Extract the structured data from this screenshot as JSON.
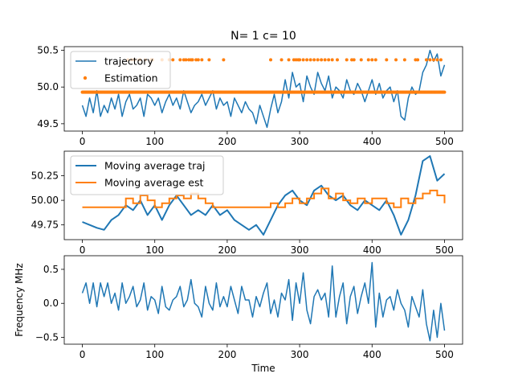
{
  "title": "N= 1 c= 10",
  "chart_data": [
    {
      "type": "line",
      "xlim": [
        -25,
        525
      ],
      "ylim": [
        49.4,
        50.55
      ],
      "xticks": [
        0,
        100,
        200,
        300,
        400,
        500
      ],
      "xtick_labels": [
        "0",
        "100",
        "200",
        "300",
        "400",
        "500"
      ],
      "yticks": [
        49.5,
        50.0,
        50.5
      ],
      "ytick_labels": [
        "49.5",
        "50.0",
        "50.5"
      ],
      "legend_location": "upper left",
      "series": [
        {
          "name": "trajectory",
          "style": "line",
          "color": "#1f77b4",
          "linewidth": 1.5,
          "x": [
            0,
            5,
            10,
            15,
            20,
            25,
            30,
            35,
            40,
            45,
            50,
            55,
            60,
            65,
            70,
            75,
            80,
            85,
            90,
            95,
            100,
            105,
            110,
            115,
            120,
            125,
            130,
            135,
            140,
            145,
            150,
            155,
            160,
            165,
            170,
            175,
            180,
            185,
            190,
            195,
            200,
            205,
            210,
            215,
            220,
            225,
            230,
            235,
            240,
            245,
            250,
            255,
            260,
            265,
            270,
            275,
            280,
            285,
            290,
            295,
            300,
            305,
            310,
            315,
            320,
            325,
            330,
            335,
            340,
            345,
            350,
            355,
            360,
            365,
            370,
            375,
            380,
            385,
            390,
            395,
            400,
            405,
            410,
            415,
            420,
            425,
            430,
            435,
            440,
            445,
            450,
            455,
            460,
            465,
            470,
            475,
            480,
            485,
            490,
            495,
            500
          ],
          "y": [
            49.75,
            49.6,
            49.85,
            49.65,
            49.95,
            49.6,
            49.75,
            49.65,
            49.85,
            49.7,
            49.9,
            49.6,
            49.8,
            49.9,
            49.7,
            49.75,
            49.85,
            49.6,
            49.9,
            49.85,
            49.75,
            49.85,
            49.65,
            49.8,
            49.9,
            49.75,
            49.85,
            49.7,
            49.95,
            49.8,
            49.65,
            49.75,
            49.8,
            49.9,
            49.75,
            49.85,
            49.95,
            49.7,
            49.85,
            49.75,
            49.8,
            49.6,
            49.85,
            49.75,
            49.65,
            49.8,
            49.7,
            49.65,
            49.5,
            49.75,
            49.6,
            49.45,
            49.7,
            49.9,
            49.65,
            49.8,
            50.1,
            49.85,
            50.2,
            50.0,
            50.05,
            49.8,
            50.15,
            50.0,
            49.9,
            50.2,
            50.05,
            49.95,
            50.15,
            49.85,
            50.0,
            49.95,
            49.85,
            50.1,
            49.95,
            49.9,
            50.05,
            49.95,
            49.8,
            49.95,
            50.1,
            49.9,
            50.05,
            49.85,
            49.95,
            50.0,
            49.8,
            49.95,
            49.6,
            49.55,
            49.85,
            50.0,
            49.9,
            49.95,
            50.2,
            50.3,
            50.5,
            50.35,
            50.45,
            50.15,
            50.3
          ]
        },
        {
          "name": "Estimation",
          "style": "markers",
          "color": "#ff7f0e",
          "baseline_value": 49.93,
          "baseline_x_range": [
            0,
            500
          ],
          "upper_value": 50.37,
          "upper_x": [
            63,
            68,
            72,
            78,
            80,
            87,
            95,
            97,
            110,
            120,
            125,
            135,
            140,
            143,
            147,
            150,
            152,
            157,
            160,
            165,
            175,
            195,
            260,
            275,
            285,
            292,
            295,
            298,
            300,
            305,
            310,
            315,
            320,
            325,
            330,
            335,
            340,
            345,
            352,
            365,
            372,
            375,
            385,
            395,
            400,
            405,
            420,
            433,
            445,
            460,
            463,
            475,
            480,
            485,
            490,
            495
          ]
        }
      ]
    },
    {
      "type": "line",
      "xlim": [
        -25,
        525
      ],
      "ylim": [
        49.6,
        50.5
      ],
      "xticks": [
        0,
        100,
        200,
        300,
        400,
        500
      ],
      "xtick_labels": [
        "0",
        "100",
        "200",
        "300",
        "400",
        "500"
      ],
      "yticks": [
        49.75,
        50.0,
        50.25
      ],
      "ytick_labels": [
        "49.75",
        "50.00",
        "50.25"
      ],
      "legend_location": "upper left",
      "series": [
        {
          "name": "Moving average traj",
          "style": "line",
          "color": "#1f77b4",
          "linewidth": 2,
          "x": [
            0,
            10,
            20,
            30,
            40,
            50,
            60,
            70,
            80,
            90,
            100,
            110,
            120,
            130,
            140,
            150,
            160,
            170,
            180,
            190,
            200,
            210,
            220,
            230,
            240,
            250,
            260,
            270,
            280,
            290,
            300,
            310,
            320,
            330,
            340,
            350,
            360,
            370,
            380,
            390,
            400,
            410,
            420,
            430,
            440,
            450,
            460,
            470,
            480,
            490,
            500
          ],
          "y": [
            49.78,
            49.75,
            49.72,
            49.7,
            49.8,
            49.85,
            49.95,
            49.9,
            50.0,
            49.85,
            49.95,
            49.8,
            49.95,
            50.05,
            49.95,
            49.85,
            49.9,
            49.85,
            49.95,
            49.85,
            49.9,
            49.8,
            49.75,
            49.7,
            49.75,
            49.65,
            49.8,
            49.95,
            50.05,
            50.1,
            50.0,
            49.95,
            50.1,
            50.15,
            50.05,
            50.0,
            50.05,
            49.95,
            49.9,
            50.0,
            49.95,
            49.9,
            50.0,
            49.85,
            49.65,
            49.8,
            50.05,
            50.4,
            50.45,
            50.2,
            50.27
          ]
        },
        {
          "name": "Moving average est",
          "style": "steps",
          "color": "#ff7f0e",
          "linewidth": 2,
          "x": [
            0,
            60,
            70,
            80,
            90,
            100,
            110,
            120,
            130,
            140,
            150,
            160,
            170,
            180,
            200,
            260,
            270,
            280,
            290,
            300,
            310,
            320,
            330,
            340,
            350,
            360,
            370,
            380,
            390,
            400,
            420,
            430,
            440,
            450,
            460,
            470,
            480,
            490,
            500
          ],
          "y": [
            49.93,
            50.02,
            49.97,
            50.05,
            50.0,
            49.93,
            49.97,
            50.02,
            50.05,
            50.02,
            50.07,
            50.02,
            49.97,
            49.93,
            49.93,
            49.97,
            49.93,
            49.97,
            50.02,
            49.97,
            50.02,
            50.07,
            50.12,
            50.02,
            50.07,
            50.0,
            49.97,
            50.02,
            49.97,
            50.02,
            49.97,
            49.93,
            50.02,
            49.97,
            50.02,
            50.07,
            50.1,
            50.05,
            49.97
          ]
        }
      ]
    },
    {
      "type": "line",
      "xlim": [
        -25,
        525
      ],
      "ylim": [
        -0.6,
        0.7
      ],
      "xticks": [
        0,
        100,
        200,
        300,
        400,
        500
      ],
      "xtick_labels": [
        "0",
        "100",
        "200",
        "300",
        "400",
        "500"
      ],
      "yticks": [
        -0.5,
        0.0,
        0.5
      ],
      "ytick_labels": [
        "−0.5",
        "0.0",
        "0.5"
      ],
      "xlabel": "Time",
      "ylabel": "Frequency MHz",
      "series": [
        {
          "style": "line",
          "color": "#1f77b4",
          "linewidth": 1.5,
          "x": [
            0,
            5,
            10,
            15,
            20,
            25,
            30,
            35,
            40,
            45,
            50,
            55,
            60,
            65,
            70,
            75,
            80,
            85,
            90,
            95,
            100,
            105,
            110,
            115,
            120,
            125,
            130,
            135,
            140,
            145,
            150,
            155,
            160,
            165,
            170,
            175,
            180,
            185,
            190,
            195,
            200,
            205,
            210,
            215,
            220,
            225,
            230,
            235,
            240,
            245,
            250,
            255,
            260,
            265,
            270,
            275,
            280,
            285,
            290,
            295,
            300,
            305,
            310,
            315,
            320,
            325,
            330,
            335,
            340,
            345,
            350,
            355,
            360,
            365,
            370,
            375,
            380,
            385,
            390,
            395,
            400,
            405,
            410,
            415,
            420,
            425,
            430,
            435,
            440,
            445,
            450,
            455,
            460,
            465,
            470,
            475,
            480,
            485,
            490,
            495,
            500
          ],
          "y": [
            0.15,
            0.3,
            0.0,
            0.3,
            -0.05,
            0.3,
            0.1,
            0.3,
            0.0,
            0.15,
            -0.1,
            0.3,
            0.0,
            0.1,
            0.25,
            -0.05,
            0.05,
            0.3,
            -0.1,
            0.1,
            0.05,
            -0.15,
            0.25,
            -0.05,
            -0.1,
            0.05,
            0.1,
            0.25,
            -0.05,
            0.05,
            0.35,
            0.0,
            -0.05,
            -0.2,
            0.25,
            0.0,
            -0.1,
            0.3,
            -0.05,
            0.1,
            -0.05,
            0.25,
            0.05,
            -0.15,
            0.25,
            0.05,
            0.05,
            -0.2,
            0.1,
            -0.05,
            0.15,
            0.3,
            -0.15,
            0.05,
            -0.2,
            0.15,
            0.05,
            0.35,
            -0.25,
            0.3,
            0.0,
            0.45,
            -0.1,
            -0.3,
            0.1,
            0.2,
            0.05,
            0.15,
            -0.2,
            0.55,
            -0.2,
            0.1,
            0.3,
            -0.3,
            0.1,
            0.25,
            -0.15,
            0.1,
            0.3,
            0.0,
            0.6,
            -0.35,
            0.15,
            -0.2,
            0.05,
            0.1,
            -0.1,
            0.2,
            0.0,
            -0.1,
            -0.35,
            0.1,
            -0.05,
            -0.2,
            0.2,
            -0.3,
            -0.55,
            -0.1,
            -0.5,
            0.0,
            -0.4
          ]
        }
      ]
    }
  ]
}
